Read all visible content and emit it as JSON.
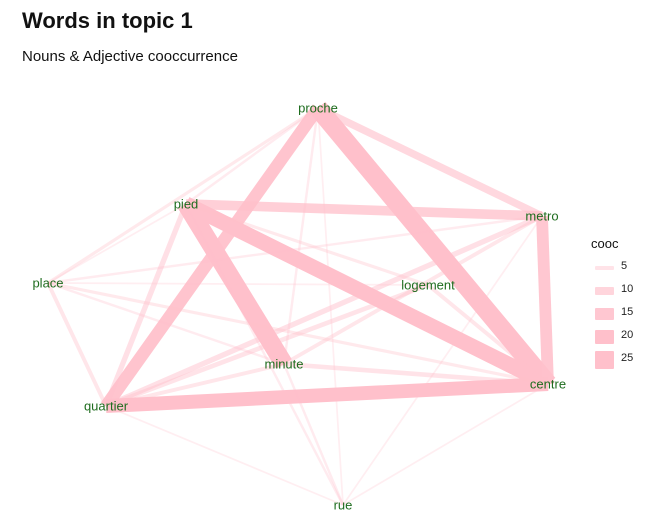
{
  "header": {
    "title": "Words in topic 1",
    "subtitle": "Nouns & Adjective cooccurrence"
  },
  "colors": {
    "edge": "#ffc0cb",
    "label": "#1f6d1f",
    "text": "#111111"
  },
  "nodes": [
    "proche",
    "pied",
    "metro",
    "place",
    "logement",
    "minute",
    "centre",
    "quartier",
    "rue"
  ],
  "edges": [
    {
      "from": "proche",
      "to": "centre",
      "cooc": 25
    },
    {
      "from": "proche",
      "to": "quartier",
      "cooc": 16
    },
    {
      "from": "proche",
      "to": "metro",
      "cooc": 9
    },
    {
      "from": "proche",
      "to": "place",
      "cooc": 3
    },
    {
      "from": "proche",
      "to": "pied",
      "cooc": 2
    },
    {
      "from": "proche",
      "to": "minute",
      "cooc": 2
    },
    {
      "from": "proche",
      "to": "rue",
      "cooc": 1
    },
    {
      "from": "pied",
      "to": "minute",
      "cooc": 24
    },
    {
      "from": "pied",
      "to": "centre",
      "cooc": 20
    },
    {
      "from": "pied",
      "to": "metro",
      "cooc": 12
    },
    {
      "from": "pied",
      "to": "quartier",
      "cooc": 6
    },
    {
      "from": "pied",
      "to": "logement",
      "cooc": 3
    },
    {
      "from": "pied",
      "to": "rue",
      "cooc": 2
    },
    {
      "from": "pied",
      "to": "place",
      "cooc": 1
    },
    {
      "from": "metro",
      "to": "centre",
      "cooc": 15
    },
    {
      "from": "metro",
      "to": "quartier",
      "cooc": 6
    },
    {
      "from": "metro",
      "to": "minute",
      "cooc": 4
    },
    {
      "from": "metro",
      "to": "place",
      "cooc": 2
    },
    {
      "from": "metro",
      "to": "rue",
      "cooc": 1
    },
    {
      "from": "quartier",
      "to": "centre",
      "cooc": 18
    },
    {
      "from": "quartier",
      "to": "logement",
      "cooc": 5
    },
    {
      "from": "quartier",
      "to": "minute",
      "cooc": 4
    },
    {
      "from": "quartier",
      "to": "place",
      "cooc": 4
    },
    {
      "from": "quartier",
      "to": "rue",
      "cooc": 1
    },
    {
      "from": "place",
      "to": "centre",
      "cooc": 3
    },
    {
      "from": "place",
      "to": "minute",
      "cooc": 2
    },
    {
      "from": "place",
      "to": "logement",
      "cooc": 1
    },
    {
      "from": "minute",
      "to": "centre",
      "cooc": 5
    },
    {
      "from": "minute",
      "to": "rue",
      "cooc": 2
    },
    {
      "from": "logement",
      "to": "centre",
      "cooc": 4
    },
    {
      "from": "centre",
      "to": "rue",
      "cooc": 1
    }
  ],
  "legend": {
    "title": "cooc",
    "items": [
      "5",
      "10",
      "15",
      "20",
      "25"
    ]
  }
}
